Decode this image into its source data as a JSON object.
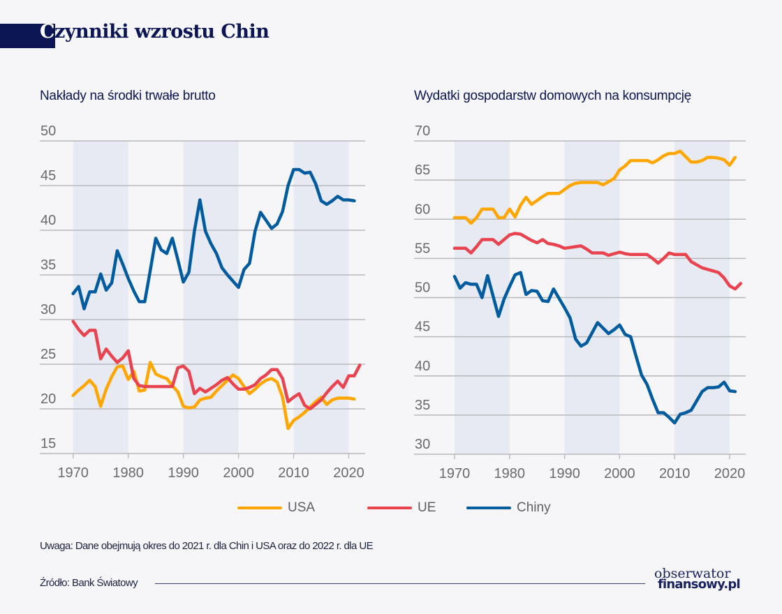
{
  "header": {
    "title_first_letter": "C",
    "title_rest": "zynniki wzrostu Chin"
  },
  "colors": {
    "USA": "#ffa600",
    "UE": "#e8434e",
    "Chiny": "#005b9f",
    "band": "#e7eaf2",
    "grid": "#b8b8bc",
    "title": "#0d1655"
  },
  "legend": [
    {
      "label": "USA",
      "color": "#ffa600"
    },
    {
      "label": "UE",
      "color": "#e8434e"
    },
    {
      "label": "Chiny",
      "color": "#005b9f"
    }
  ],
  "footer": {
    "note": "Uwaga: Dane obejmują okres do 2021 r. dla Chin i USA oraz do 2022 r. dla UE",
    "source": "Źródło: Bank Światowy",
    "logo_line1": "obserwator",
    "logo_line2": "finansowy.pl"
  },
  "chart_data": [
    {
      "type": "line",
      "title": "Nakłady na środki trwałe brutto",
      "xlabel": "",
      "ylabel": "",
      "xlim": [
        1968,
        2023
      ],
      "ylim": [
        15,
        50
      ],
      "yticks": [
        15,
        20,
        25,
        30,
        35,
        40,
        45,
        50
      ],
      "xticks": [
        1970,
        1980,
        1990,
        2000,
        2010,
        2020
      ],
      "shaded_decades": [
        [
          1970,
          1980
        ],
        [
          1990,
          2000
        ],
        [
          2010,
          2020
        ]
      ],
      "grid": true,
      "series": [
        {
          "name": "USA",
          "start_year": 1970,
          "values": [
            21.5,
            22.1,
            22.6,
            23.2,
            22.5,
            20.3,
            22.2,
            23.6,
            24.7,
            24.8,
            23.3,
            24.2,
            22.0,
            22.1,
            25.2,
            23.9,
            23.6,
            23.4,
            22.6,
            21.9,
            20.3,
            20.1,
            20.2,
            21.0,
            21.2,
            21.3,
            22.0,
            22.6,
            23.2,
            23.8,
            23.4,
            22.5,
            21.7,
            22.2,
            22.8,
            23.2,
            23.4,
            23.0,
            21.3,
            17.8,
            18.7,
            19.1,
            19.6,
            20.2,
            20.8,
            21.3,
            20.5,
            21.0,
            21.2,
            21.2,
            21.2,
            21.1
          ]
        },
        {
          "name": "UE",
          "start_year": 1970,
          "values": [
            29.8,
            28.9,
            28.2,
            28.8,
            28.8,
            25.6,
            26.7,
            25.9,
            25.2,
            25.7,
            26.5,
            23.4,
            22.6,
            22.5,
            22.5,
            22.5,
            22.5,
            22.5,
            22.5,
            24.6,
            24.8,
            24.2,
            21.7,
            22.3,
            21.9,
            22.3,
            22.7,
            23.2,
            23.5,
            22.8,
            22.2,
            22.2,
            22.4,
            22.7,
            23.4,
            23.8,
            24.4,
            24.4,
            23.4,
            20.8,
            21.3,
            21.7,
            20.4,
            20.0,
            20.5,
            21.0,
            21.8,
            22.5,
            23.1,
            22.4,
            23.7,
            23.7,
            24.9
          ]
        },
        {
          "name": "Chiny",
          "start_year": 1970,
          "values": [
            32.9,
            33.7,
            31.2,
            33.1,
            33.1,
            35.1,
            33.3,
            34.1,
            37.7,
            36.2,
            34.6,
            33.2,
            32.0,
            32.0,
            35.5,
            39.1,
            37.8,
            37.4,
            39.1,
            36.7,
            34.2,
            35.3,
            39.9,
            43.4,
            39.9,
            38.5,
            37.4,
            35.8,
            35.0,
            34.3,
            33.6,
            35.6,
            36.3,
            39.9,
            42.0,
            41.1,
            40.2,
            40.7,
            42.1,
            45.0,
            46.8,
            46.8,
            46.4,
            46.5,
            45.2,
            43.3,
            42.9,
            43.3,
            43.8,
            43.4,
            43.4,
            43.3
          ]
        }
      ]
    },
    {
      "type": "line",
      "title": "Wydatki gospodarstw domowych na konsumpcję",
      "xlabel": "",
      "ylabel": "",
      "xlim": [
        1968,
        2023
      ],
      "ylim": [
        30,
        70
      ],
      "yticks": [
        30,
        35,
        40,
        45,
        50,
        55,
        60,
        65,
        70
      ],
      "xticks": [
        1970,
        1980,
        1990,
        2000,
        2010,
        2020
      ],
      "shaded_decades": [
        [
          1970,
          1980
        ],
        [
          1990,
          2000
        ],
        [
          2010,
          2020
        ]
      ],
      "grid": true,
      "series": [
        {
          "name": "USA",
          "start_year": 1970,
          "values": [
            60.2,
            60.2,
            60.2,
            59.5,
            60.2,
            61.3,
            61.3,
            61.3,
            60.2,
            60.2,
            61.3,
            60.3,
            61.8,
            62.8,
            61.9,
            62.4,
            62.9,
            63.3,
            63.3,
            63.3,
            63.8,
            64.3,
            64.6,
            64.7,
            64.7,
            64.7,
            64.7,
            64.4,
            64.8,
            65.2,
            66.3,
            66.8,
            67.5,
            67.5,
            67.5,
            67.5,
            67.2,
            67.6,
            68.1,
            68.4,
            68.4,
            68.7,
            68.0,
            67.3,
            67.3,
            67.5,
            67.9,
            67.9,
            67.8,
            67.6,
            66.9,
            67.9
          ]
        },
        {
          "name": "UE",
          "start_year": 1970,
          "values": [
            56.3,
            56.3,
            56.3,
            55.7,
            56.5,
            57.4,
            57.4,
            57.4,
            56.8,
            57.4,
            58.0,
            58.2,
            58.1,
            57.7,
            57.3,
            57.0,
            57.4,
            56.9,
            56.8,
            56.6,
            56.3,
            56.4,
            56.5,
            56.6,
            56.2,
            55.7,
            55.7,
            55.7,
            55.4,
            55.6,
            55.8,
            55.6,
            55.5,
            55.5,
            55.5,
            55.5,
            55.0,
            54.4,
            55.0,
            55.7,
            55.5,
            55.5,
            55.5,
            54.6,
            54.2,
            53.8,
            53.6,
            53.4,
            53.2,
            52.5,
            51.5,
            51.1,
            51.8
          ]
        },
        {
          "name": "Chiny",
          "start_year": 1970,
          "values": [
            52.7,
            51.2,
            51.9,
            51.7,
            51.7,
            50.0,
            52.8,
            50.2,
            47.6,
            49.8,
            51.4,
            52.9,
            53.2,
            50.4,
            50.9,
            50.8,
            49.6,
            49.5,
            51.1,
            49.9,
            48.7,
            47.4,
            44.7,
            43.8,
            44.2,
            45.5,
            46.8,
            46.1,
            45.4,
            45.9,
            46.5,
            45.3,
            45.0,
            42.5,
            40.1,
            38.9,
            37.0,
            35.3,
            35.3,
            34.7,
            34.0,
            35.1,
            35.3,
            35.6,
            36.8,
            38.0,
            38.5,
            38.5,
            38.6,
            39.2,
            38.1,
            38.0
          ]
        }
      ]
    }
  ]
}
